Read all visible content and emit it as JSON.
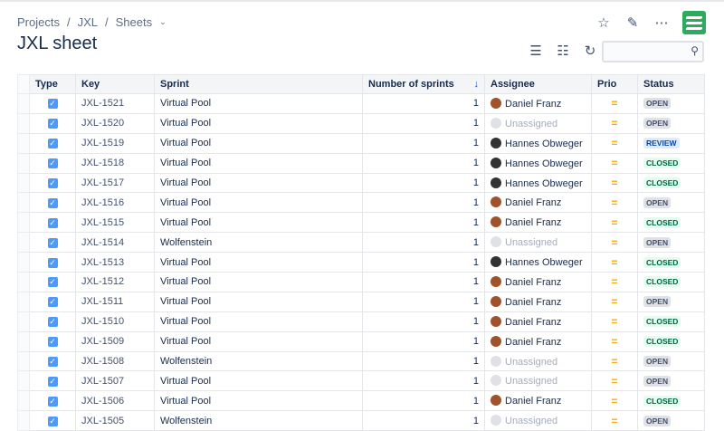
{
  "breadcrumb": [
    "Projects",
    "JXL",
    "Sheets"
  ],
  "title": "JXL sheet",
  "colors": {
    "accent": "#0052cc",
    "logo": "#2bab5e",
    "prio_medium": "#ffab00"
  },
  "icons": {
    "top": [
      "star-icon",
      "pencil-icon",
      "more-icon"
    ],
    "tools": [
      "checklist-icon",
      "hierarchy-icon",
      "refresh-icon"
    ]
  },
  "search": {
    "placeholder": ""
  },
  "columns": [
    "Type",
    "Key",
    "Sprint",
    "Number of sprints",
    "Assignee",
    "Prio",
    "Status"
  ],
  "sort": {
    "column": "Number of sprints",
    "direction": "descending"
  },
  "statuses": {
    "OPEN": {
      "bg": "#dfe1e6",
      "fg": "#42526e"
    },
    "REVIEW": {
      "bg": "#deebff",
      "fg": "#0747a6"
    },
    "CLOSED": {
      "bg": "#e3fcef",
      "fg": "#006644"
    }
  },
  "rows": [
    {
      "key": "JXL-1521",
      "sprint": "Virtual Pool",
      "n": "1",
      "assignee": "Daniel Franz",
      "prio": "=",
      "status": "OPEN"
    },
    {
      "key": "JXL-1520",
      "sprint": "Virtual Pool",
      "n": "1",
      "assignee": "Unassigned",
      "prio": "=",
      "status": "OPEN"
    },
    {
      "key": "JXL-1519",
      "sprint": "Virtual Pool",
      "n": "1",
      "assignee": "Hannes Obweger",
      "prio": "=",
      "status": "REVIEW"
    },
    {
      "key": "JXL-1518",
      "sprint": "Virtual Pool",
      "n": "1",
      "assignee": "Hannes Obweger",
      "prio": "=",
      "status": "CLOSED"
    },
    {
      "key": "JXL-1517",
      "sprint": "Virtual Pool",
      "n": "1",
      "assignee": "Hannes Obweger",
      "prio": "=",
      "status": "CLOSED"
    },
    {
      "key": "JXL-1516",
      "sprint": "Virtual Pool",
      "n": "1",
      "assignee": "Daniel Franz",
      "prio": "=",
      "status": "OPEN"
    },
    {
      "key": "JXL-1515",
      "sprint": "Virtual Pool",
      "n": "1",
      "assignee": "Daniel Franz",
      "prio": "=",
      "status": "CLOSED"
    },
    {
      "key": "JXL-1514",
      "sprint": "Wolfenstein",
      "n": "1",
      "assignee": "Unassigned",
      "prio": "=",
      "status": "OPEN"
    },
    {
      "key": "JXL-1513",
      "sprint": "Virtual Pool",
      "n": "1",
      "assignee": "Hannes Obweger",
      "prio": "=",
      "status": "CLOSED"
    },
    {
      "key": "JXL-1512",
      "sprint": "Virtual Pool",
      "n": "1",
      "assignee": "Daniel Franz",
      "prio": "=",
      "status": "CLOSED"
    },
    {
      "key": "JXL-1511",
      "sprint": "Virtual Pool",
      "n": "1",
      "assignee": "Daniel Franz",
      "prio": "=",
      "status": "OPEN"
    },
    {
      "key": "JXL-1510",
      "sprint": "Virtual Pool",
      "n": "1",
      "assignee": "Daniel Franz",
      "prio": "=",
      "status": "CLOSED"
    },
    {
      "key": "JXL-1509",
      "sprint": "Virtual Pool",
      "n": "1",
      "assignee": "Daniel Franz",
      "prio": "=",
      "status": "CLOSED"
    },
    {
      "key": "JXL-1508",
      "sprint": "Wolfenstein",
      "n": "1",
      "assignee": "Unassigned",
      "prio": "=",
      "status": "OPEN"
    },
    {
      "key": "JXL-1507",
      "sprint": "Virtual Pool",
      "n": "1",
      "assignee": "Unassigned",
      "prio": "=",
      "status": "OPEN"
    },
    {
      "key": "JXL-1506",
      "sprint": "Virtual Pool",
      "n": "1",
      "assignee": "Daniel Franz",
      "prio": "=",
      "status": "CLOSED"
    },
    {
      "key": "JXL-1505",
      "sprint": "Wolfenstein",
      "n": "1",
      "assignee": "Unassigned",
      "prio": "=",
      "status": "OPEN"
    }
  ]
}
